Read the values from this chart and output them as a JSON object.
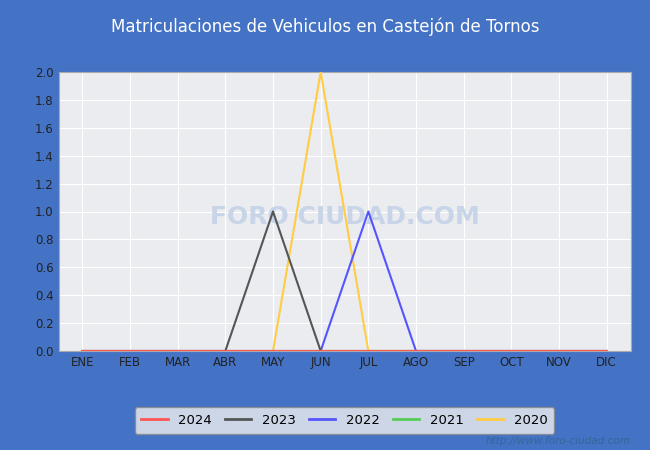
{
  "title": "Matriculaciones de Vehiculos en Castejón de Tornos",
  "title_bg_color": "#4472c4",
  "title_text_color": "#ffffff",
  "outer_bg_color": "#4472c4",
  "plot_bg_color": "#eaecf0",
  "legend_bg_color": "#ffffff",
  "months": [
    "ENE",
    "FEB",
    "MAR",
    "ABR",
    "MAY",
    "JUN",
    "JUL",
    "AGO",
    "SEP",
    "OCT",
    "NOV",
    "DIC"
  ],
  "ylim": [
    0.0,
    2.0
  ],
  "yticks": [
    0.0,
    0.2,
    0.4,
    0.6,
    0.8,
    1.0,
    1.2,
    1.4,
    1.6,
    1.8,
    2.0
  ],
  "series": {
    "2024": {
      "color": "#ff5555",
      "values": [
        0,
        0,
        0,
        0,
        0,
        0,
        0,
        0,
        0,
        0,
        0,
        0
      ]
    },
    "2023": {
      "color": "#555555",
      "values": [
        0,
        0,
        0,
        0,
        1,
        0,
        0,
        0,
        0,
        0,
        0,
        0
      ]
    },
    "2022": {
      "color": "#5555ff",
      "values": [
        0,
        0,
        0,
        0,
        0,
        0,
        1,
        0,
        0,
        0,
        0,
        0
      ]
    },
    "2021": {
      "color": "#55cc55",
      "values": [
        0,
        0,
        0,
        0,
        0,
        0,
        0,
        0,
        0,
        0,
        0,
        0
      ]
    },
    "2020": {
      "color": "#ffcc44",
      "values": [
        0,
        0,
        0,
        0,
        0,
        2,
        0,
        0,
        0,
        0,
        0,
        0
      ]
    }
  },
  "legend_order": [
    "2024",
    "2023",
    "2022",
    "2021",
    "2020"
  ],
  "watermark_text": "FORO CIUDAD.COM",
  "watermark_color": "#c8d4e8",
  "url_text": "http://www.foro-ciudad.com",
  "grid_color": "#ffffff",
  "tick_color": "#222222",
  "frame_color": "#aaaaaa"
}
